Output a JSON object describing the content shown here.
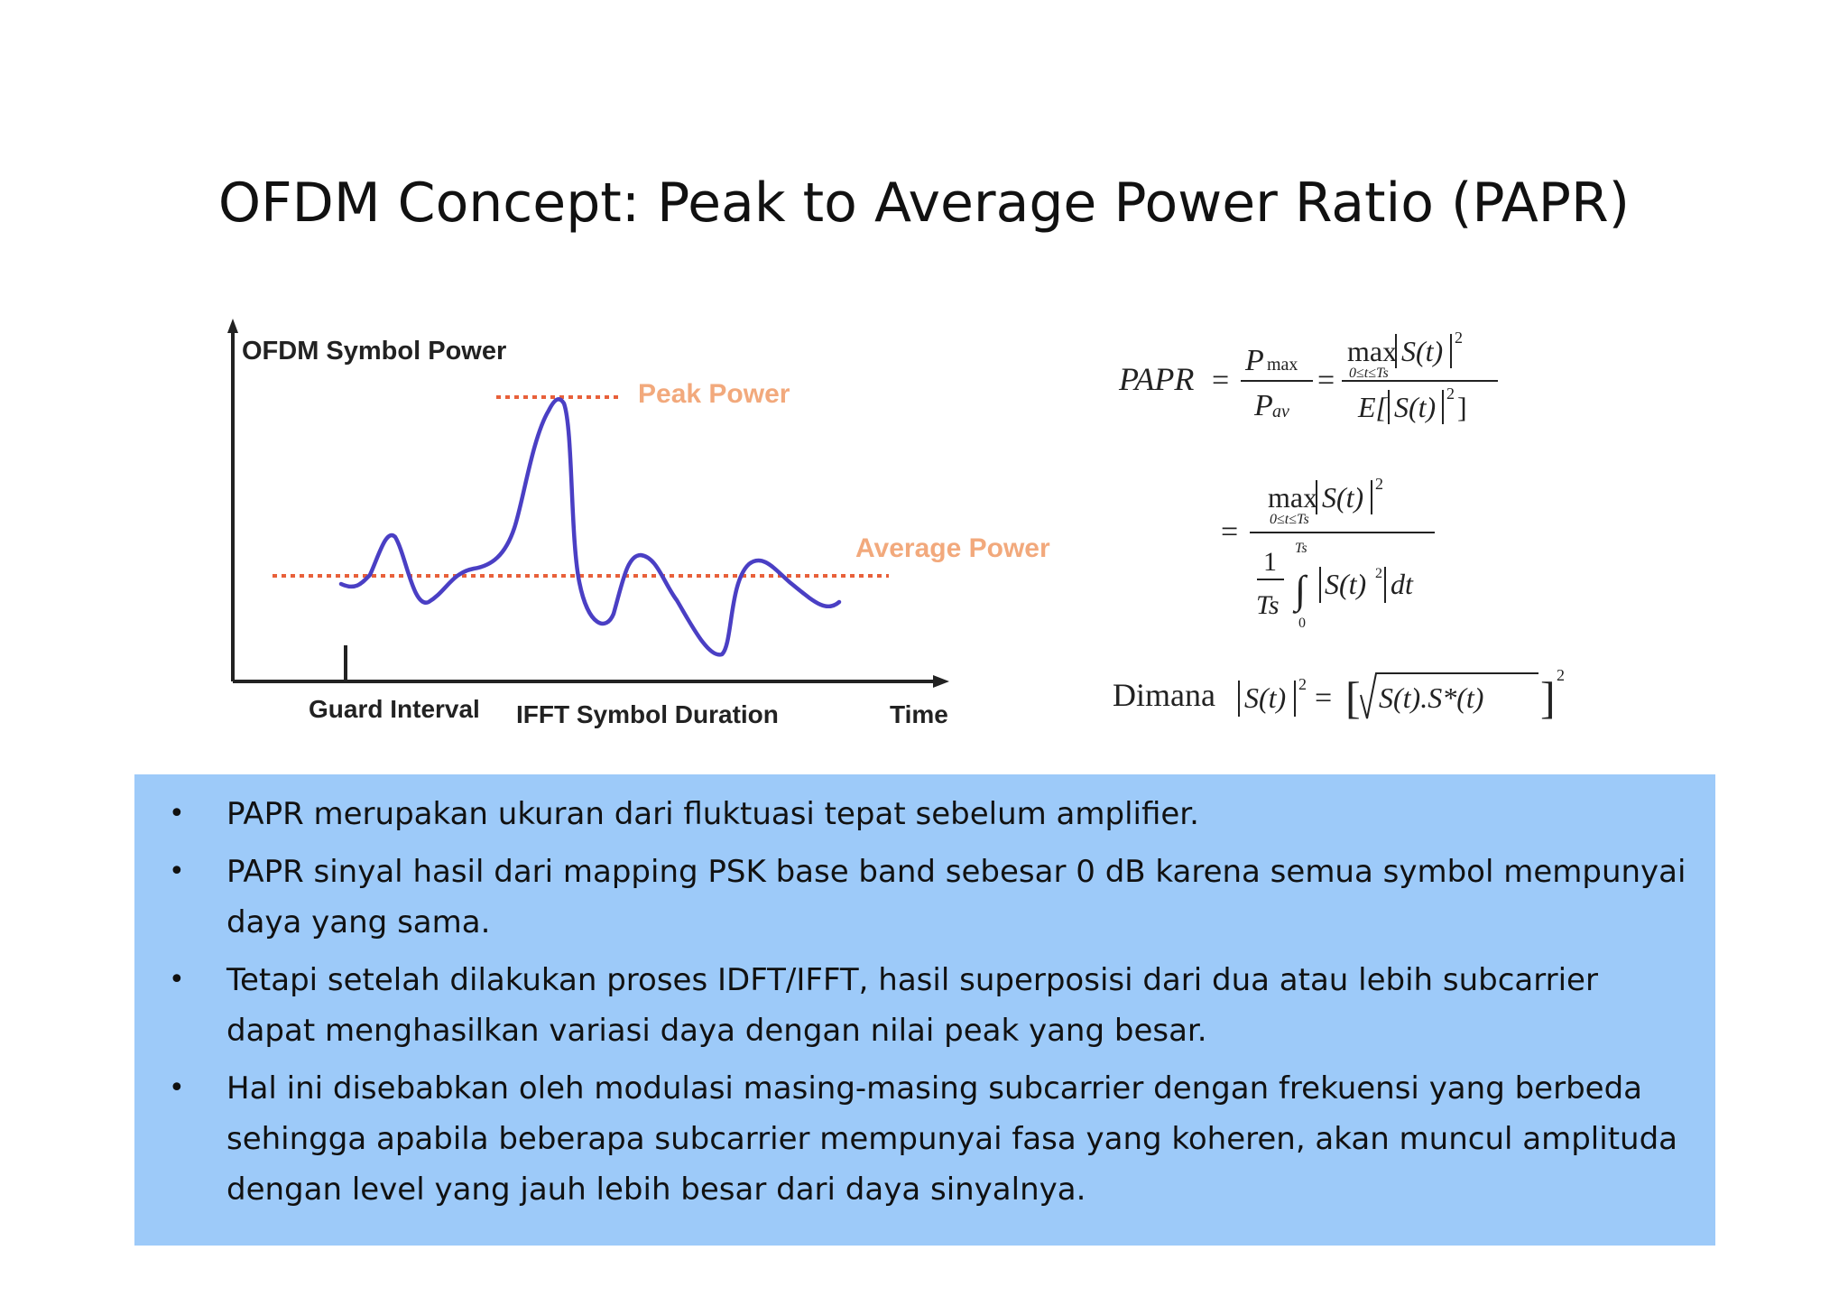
{
  "slide": {
    "title": "OFDM Concept: Peak to Average Power Ratio (PAPR)"
  },
  "figure": {
    "y_axis_label": "OFDM Symbol Power",
    "peak_label": "Peak Power",
    "average_label": "Average Power",
    "x_labels": {
      "guard": "Guard Interval",
      "ifft": "IFFT Symbol Duration",
      "time": "Time"
    },
    "colors": {
      "waveform": "#4a3fc4",
      "dotted_lines": "#e8603a",
      "annotation": "#f2a97c",
      "axes": "#222222"
    }
  },
  "formulas": {
    "line1": "PAPR = P_max / P_av = max_{0≤t≤Ts} |S(t)|^2 / E[|S(t)|^2]",
    "line2": "= max_{0≤t≤Ts} |S(t)|^2 / ( (1/Ts) ∫_0^Ts |S(t)^2| dt )",
    "line3": "Dimana |S(t)|^2 = [ √(S(t).S*(t)) ]^2",
    "dimana": "Dimana"
  },
  "bullets": {
    "dot": "•",
    "items": [
      "PAPR merupakan ukuran dari fluktuasi tepat sebelum amplifier.",
      "PAPR sinyal hasil dari mapping PSK base band sebesar 0 dB karena semua symbol mempunyai daya yang sama.",
      "Tetapi setelah dilakukan proses IDFT/IFFT, hasil superposisi dari dua atau lebih subcarrier dapat menghasilkan variasi daya dengan nilai peak yang besar.",
      "Hal ini disebabkan oleh modulasi masing-masing subcarrier dengan frekuensi yang berbeda sehingga apabila beberapa subcarrier mempunyai fasa yang koheren, akan muncul amplituda dengan level yang jauh lebih besar dari daya sinyalnya."
    ]
  }
}
